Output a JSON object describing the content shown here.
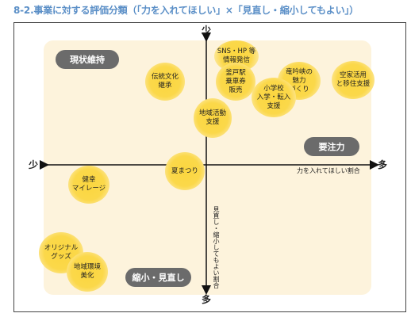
{
  "title": "8-2.事業に対する評価分類（「力を入れてほしい」×「見直し・縮小してもよい」）",
  "axes": {
    "top": "少",
    "bottom": "多",
    "left": "少",
    "right": "多",
    "horizontal_label": "力を入れてほしい割合",
    "vertical_label": "見直し・縮小してもよい割合"
  },
  "quadrants": {
    "top_left": "現状維持",
    "right": "要注力",
    "bottom": "縮小・見直し"
  },
  "items": {
    "sns_hp": "SNS・HP 等\n情報発信",
    "kamado_station": "釜戸駅\n乗車券\n販売",
    "ryuuhi_kyo": "竜吟峡の\n魅力\nづくり",
    "akiya": "空家活用\nと移住支援",
    "dentou_bunka": "伝統文化\n継承",
    "shougakkou": "小学校\n入学・転入\n支援",
    "chiiki_katsudou": "地域活動\n支援",
    "natsu_matsuri": "夏まつり",
    "kenkou_mileage": "健幸\nマイレージ",
    "original_goods": "オリジナル\nグッズ",
    "chiiki_kankyou": "地域環境\n美化"
  }
}
